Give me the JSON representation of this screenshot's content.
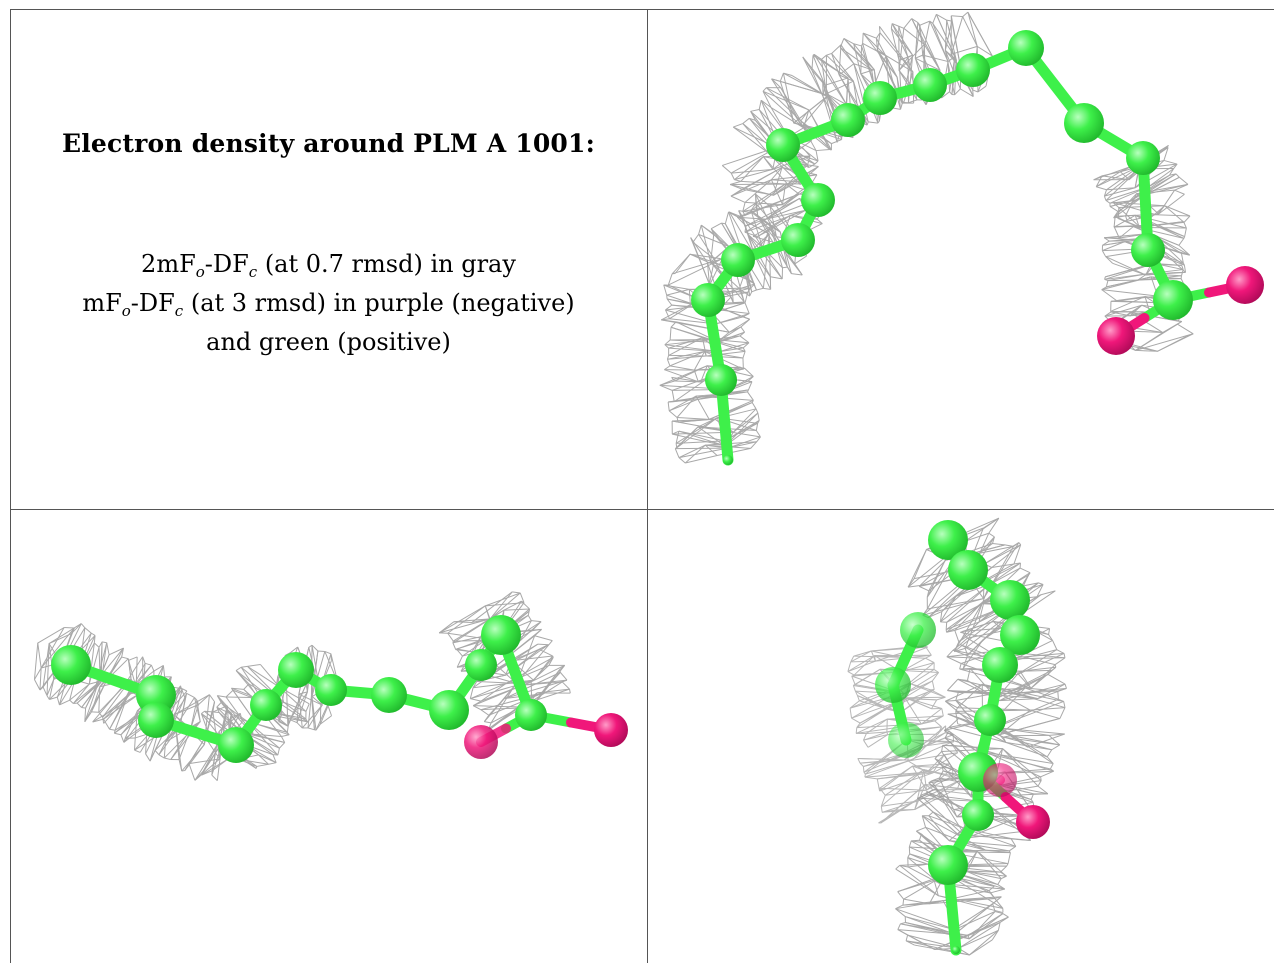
{
  "caption": {
    "title": "Electron density around PLM A 1001:",
    "line1_prefix": "2mF",
    "line1_sub1": "o",
    "line1_mid": "-DF",
    "line1_sub2": "c",
    "line1_suffix": " (at 0.7 rmsd) in gray",
    "line2_prefix": "mF",
    "line2_sub1": "o",
    "line2_mid": "-DF",
    "line2_sub2": "c",
    "line2_suffix": " (at 3 rmsd) in purple (negative)",
    "line3": "and green (positive)"
  },
  "colors": {
    "carbon": "#3ef04a",
    "oxygen": "#f0177a",
    "mesh": "#9a9a9a",
    "border": "#555555"
  },
  "views": [
    {
      "name": "view-top-right"
    },
    {
      "name": "view-bottom-left"
    },
    {
      "name": "view-bottom-right"
    }
  ]
}
